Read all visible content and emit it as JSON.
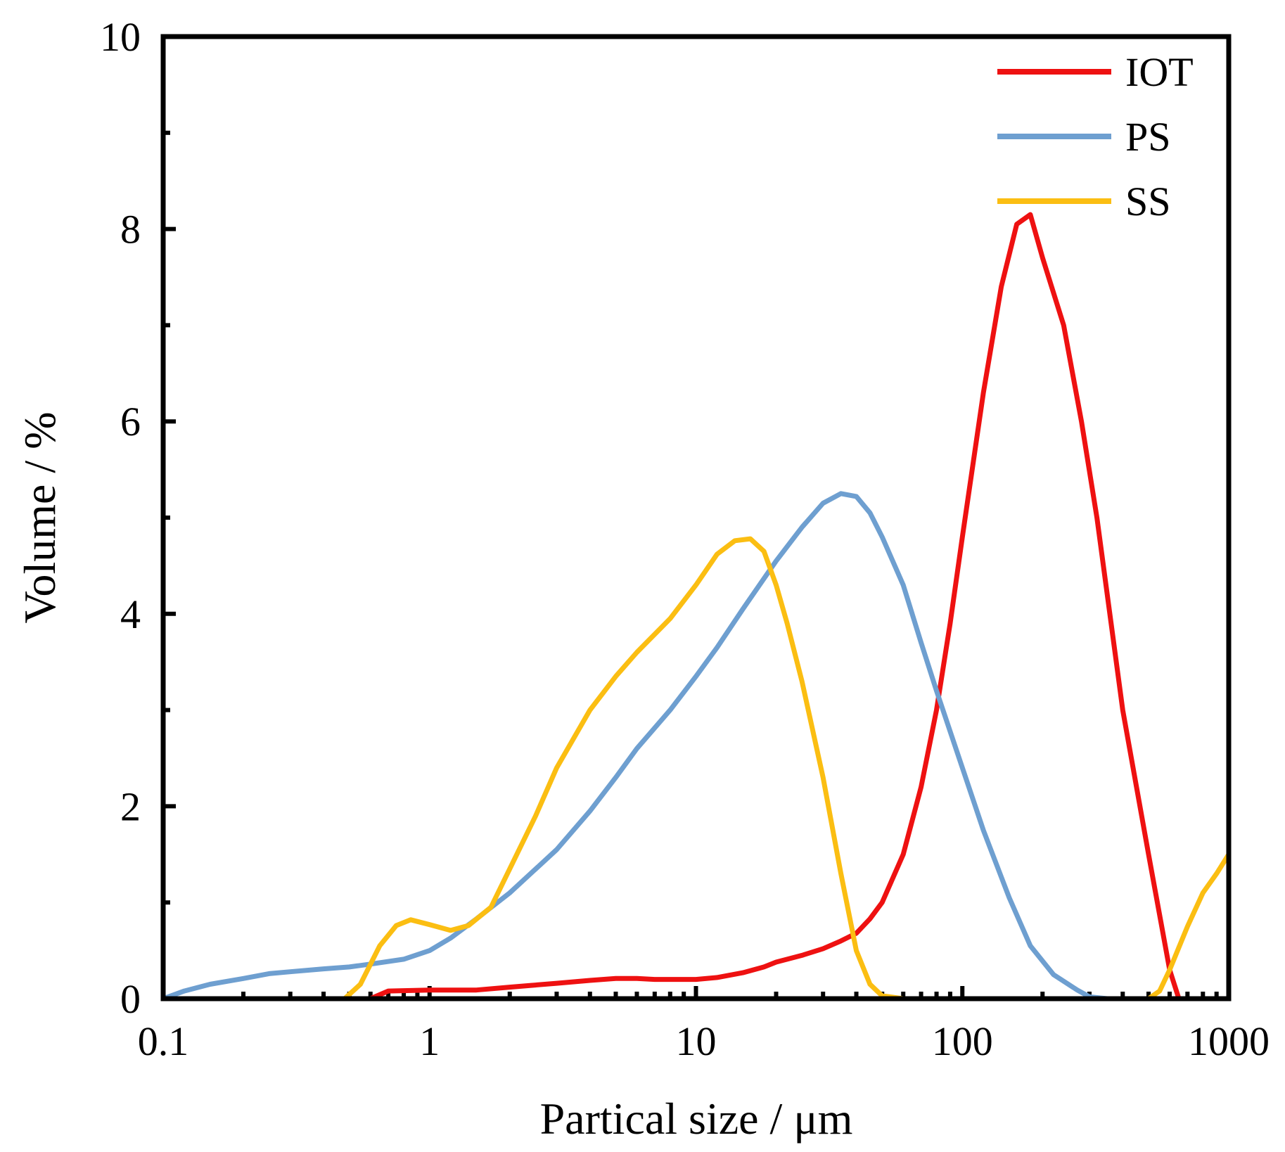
{
  "chart_data": {
    "type": "line",
    "title": "",
    "xlabel": "Partical size / μm",
    "ylabel": "Volume / %",
    "xscale": "log",
    "xlim": [
      0.1,
      1000
    ],
    "ylim": [
      0,
      10
    ],
    "x_ticks": [
      0.1,
      1,
      10,
      100,
      1000
    ],
    "x_tick_labels": [
      "0.1",
      "1",
      "10",
      "100",
      "1000"
    ],
    "y_ticks": [
      0,
      2,
      4,
      6,
      8,
      10
    ],
    "y_tick_labels": [
      "0",
      "2",
      "4",
      "6",
      "8",
      "10"
    ],
    "legend": "top-right",
    "grid": false,
    "series": [
      {
        "name": "IOT",
        "color": "#ee1111",
        "points": [
          [
            0.1,
            0
          ],
          [
            0.6,
            0
          ],
          [
            0.7,
            0.08
          ],
          [
            1,
            0.09
          ],
          [
            1.5,
            0.09
          ],
          [
            2,
            0.12
          ],
          [
            3,
            0.16
          ],
          [
            4,
            0.19
          ],
          [
            5,
            0.21
          ],
          [
            6,
            0.21
          ],
          [
            7,
            0.2
          ],
          [
            8,
            0.2
          ],
          [
            10,
            0.2
          ],
          [
            12,
            0.22
          ],
          [
            15,
            0.27
          ],
          [
            18,
            0.33
          ],
          [
            20,
            0.38
          ],
          [
            25,
            0.45
          ],
          [
            30,
            0.52
          ],
          [
            35,
            0.6
          ],
          [
            40,
            0.68
          ],
          [
            45,
            0.83
          ],
          [
            50,
            1.0
          ],
          [
            60,
            1.5
          ],
          [
            70,
            2.2
          ],
          [
            80,
            3.0
          ],
          [
            90,
            3.9
          ],
          [
            100,
            4.8
          ],
          [
            120,
            6.3
          ],
          [
            140,
            7.4
          ],
          [
            160,
            8.05
          ],
          [
            180,
            8.15
          ],
          [
            200,
            7.7
          ],
          [
            240,
            7.0
          ],
          [
            280,
            6.0
          ],
          [
            320,
            5.0
          ],
          [
            400,
            3.0
          ],
          [
            500,
            1.5
          ],
          [
            600,
            0.3
          ],
          [
            650,
            0
          ],
          [
            1000,
            0
          ]
        ]
      },
      {
        "name": "PS",
        "color": "#6e9fd0",
        "points": [
          [
            0.1,
            0
          ],
          [
            0.12,
            0.08
          ],
          [
            0.15,
            0.15
          ],
          [
            0.2,
            0.21
          ],
          [
            0.25,
            0.26
          ],
          [
            0.3,
            0.28
          ],
          [
            0.4,
            0.31
          ],
          [
            0.5,
            0.33
          ],
          [
            0.6,
            0.36
          ],
          [
            0.8,
            0.41
          ],
          [
            1,
            0.5
          ],
          [
            1.2,
            0.63
          ],
          [
            1.5,
            0.83
          ],
          [
            2,
            1.1
          ],
          [
            3,
            1.55
          ],
          [
            4,
            1.95
          ],
          [
            5,
            2.3
          ],
          [
            6,
            2.6
          ],
          [
            8,
            3.0
          ],
          [
            10,
            3.35
          ],
          [
            12,
            3.65
          ],
          [
            15,
            4.05
          ],
          [
            20,
            4.55
          ],
          [
            25,
            4.9
          ],
          [
            30,
            5.15
          ],
          [
            35,
            5.25
          ],
          [
            40,
            5.22
          ],
          [
            45,
            5.05
          ],
          [
            50,
            4.8
          ],
          [
            60,
            4.3
          ],
          [
            70,
            3.7
          ],
          [
            80,
            3.2
          ],
          [
            100,
            2.4
          ],
          [
            120,
            1.75
          ],
          [
            150,
            1.05
          ],
          [
            180,
            0.55
          ],
          [
            220,
            0.25
          ],
          [
            270,
            0.09
          ],
          [
            300,
            0.02
          ],
          [
            350,
            0
          ],
          [
            1000,
            0
          ]
        ]
      },
      {
        "name": "SS",
        "color": "#fbbe12",
        "points": [
          [
            0.1,
            0
          ],
          [
            0.48,
            0
          ],
          [
            0.55,
            0.15
          ],
          [
            0.65,
            0.55
          ],
          [
            0.75,
            0.76
          ],
          [
            0.85,
            0.82
          ],
          [
            1,
            0.77
          ],
          [
            1.2,
            0.71
          ],
          [
            1.4,
            0.76
          ],
          [
            1.7,
            0.95
          ],
          [
            2,
            1.35
          ],
          [
            2.5,
            1.9
          ],
          [
            3,
            2.4
          ],
          [
            4,
            3.0
          ],
          [
            5,
            3.35
          ],
          [
            6,
            3.6
          ],
          [
            8,
            3.95
          ],
          [
            10,
            4.3
          ],
          [
            12,
            4.62
          ],
          [
            14,
            4.76
          ],
          [
            16,
            4.78
          ],
          [
            18,
            4.65
          ],
          [
            20,
            4.3
          ],
          [
            22,
            3.9
          ],
          [
            25,
            3.3
          ],
          [
            30,
            2.3
          ],
          [
            35,
            1.3
          ],
          [
            40,
            0.5
          ],
          [
            45,
            0.15
          ],
          [
            50,
            0.03
          ],
          [
            60,
            0
          ],
          [
            500,
            0
          ],
          [
            550,
            0.08
          ],
          [
            600,
            0.3
          ],
          [
            700,
            0.75
          ],
          [
            800,
            1.1
          ],
          [
            900,
            1.3
          ],
          [
            1000,
            1.5
          ]
        ]
      }
    ]
  }
}
